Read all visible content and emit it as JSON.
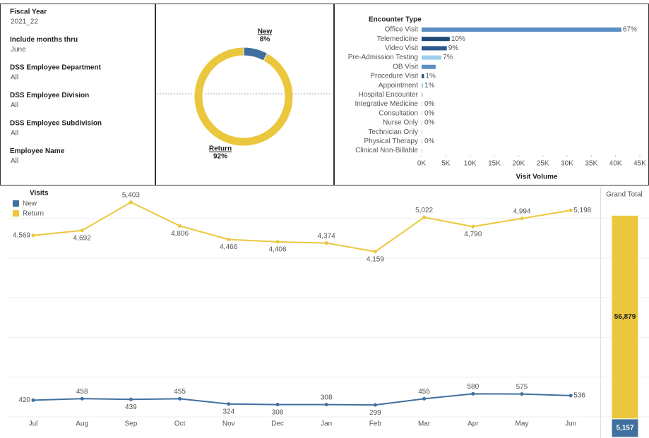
{
  "filters": [
    {
      "label": "Fiscal Year",
      "value": "2021_22"
    },
    {
      "label": "Include months thru",
      "value": "June"
    },
    {
      "label": "DSS Employee Department",
      "value": "All"
    },
    {
      "label": "DSS Employee Division",
      "value": "All"
    },
    {
      "label": "DSS Employee Subdivision",
      "value": "All"
    },
    {
      "label": "Employee Name",
      "value": "All"
    }
  ],
  "chart_data": [
    {
      "type": "donut",
      "categories": [
        "New",
        "Return"
      ],
      "values": [
        8,
        92
      ],
      "value_labels": [
        "8%",
        "92%"
      ],
      "colors": [
        "#41709f",
        "#ebc73e"
      ]
    },
    {
      "type": "hbar",
      "title": "Encounter Type",
      "x_label": "Visit Volume",
      "categories": [
        "Office Visit",
        "Telemedicine",
        "Video Visit",
        "Pre-Admission Testing",
        "OB Visit",
        "Procedure Visit",
        "Appointment",
        "Hospital Encounter",
        "Integrative Medicine",
        "Consultation",
        "Nurse Only",
        "Technician Only",
        "Physical Therapy",
        "Clinical Non-Billable"
      ],
      "values": [
        41200,
        5800,
        5200,
        4100,
        2900,
        500,
        300,
        250,
        10,
        10,
        10,
        5,
        5,
        5
      ],
      "share_labels": [
        "67%",
        "10%",
        "9%",
        "7%",
        null,
        "1%",
        "1%",
        null,
        "0%",
        "0%",
        "0%",
        null,
        "0%",
        null
      ],
      "colors": [
        "#5b8fc4",
        "#1f4a78",
        "#2a5a8f",
        "#9fcfee",
        "#5b8fc4",
        "#2a5a8f",
        "#9fcfee",
        "#9fcfee",
        "#9fcfee",
        "#9fcfee",
        "#9fcfee",
        "#9fcfee",
        "#9fcfee",
        "#9fcfee"
      ],
      "xlim": [
        0,
        45000
      ],
      "xticks": [
        {
          "value": 0,
          "label": "0K"
        },
        {
          "value": 5000,
          "label": "5K"
        },
        {
          "value": 10000,
          "label": "10K"
        },
        {
          "value": 15000,
          "label": "15K"
        },
        {
          "value": 20000,
          "label": "20K"
        },
        {
          "value": 25000,
          "label": "25K"
        },
        {
          "value": 30000,
          "label": "30K"
        },
        {
          "value": 35000,
          "label": "35K"
        },
        {
          "value": 40000,
          "label": "40K"
        },
        {
          "value": 45000,
          "label": "45K"
        }
      ]
    },
    {
      "type": "line",
      "legend_title": "Visits",
      "categories": [
        "Jul",
        "Aug",
        "Sep",
        "Oct",
        "Nov",
        "Dec",
        "Jan",
        "Feb",
        "Mar",
        "Apr",
        "May",
        "Jun"
      ],
      "series": [
        {
          "name": "New",
          "color": "#41709f",
          "values": [
            420,
            458,
            439,
            455,
            324,
            308,
            308,
            299,
            455,
            580,
            575,
            536
          ]
        },
        {
          "name": "Return",
          "color": "#ebc73e",
          "values": [
            4569,
            4692,
            5403,
            4806,
            4466,
            4406,
            4374,
            4159,
            5022,
            4790,
            4994,
            5198
          ],
          "value_labels": [
            "4,569",
            "4,692",
            "5,403",
            "4,806",
            "4,466",
            "4,406",
            "4,374",
            "4,159",
            "5,022",
            "4,790",
            "4,994",
            "5,198"
          ]
        }
      ],
      "ylim": [
        0,
        5700
      ],
      "yticks": [
        0,
        1000,
        2000,
        3000,
        4000,
        5000
      ],
      "grid": true
    },
    {
      "type": "stacked_bar",
      "title": "Grand Total",
      "series": [
        {
          "name": "New",
          "color": "#41709f",
          "values": [
            5157
          ],
          "value_labels": [
            "5,157"
          ]
        },
        {
          "name": "Return",
          "color": "#ebc73e",
          "values": [
            56879
          ],
          "value_labels": [
            "56,879"
          ]
        }
      ],
      "ylim": [
        0,
        69000
      ]
    }
  ]
}
